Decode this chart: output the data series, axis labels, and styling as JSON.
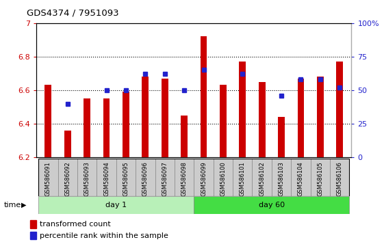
{
  "title": "GDS4374 / 7951093",
  "samples": [
    "GSM586091",
    "GSM586092",
    "GSM586093",
    "GSM586094",
    "GSM586095",
    "GSM586096",
    "GSM586097",
    "GSM586098",
    "GSM586099",
    "GSM586100",
    "GSM586101",
    "GSM586102",
    "GSM586103",
    "GSM586104",
    "GSM586105",
    "GSM586106"
  ],
  "transformed_counts": [
    6.63,
    6.36,
    6.55,
    6.55,
    6.59,
    6.68,
    6.67,
    6.45,
    6.92,
    6.63,
    6.77,
    6.65,
    6.44,
    6.67,
    6.68,
    6.77
  ],
  "percentile_ranks": [
    null,
    40,
    null,
    50,
    50,
    62,
    62,
    50,
    65,
    null,
    62,
    null,
    46,
    58,
    58,
    52
  ],
  "ylim_left": [
    6.2,
    7.0
  ],
  "ylim_right": [
    0,
    100
  ],
  "yticks_left": [
    6.2,
    6.4,
    6.6,
    6.8,
    7.0
  ],
  "ytick_labels_left": [
    "6.2",
    "6.4",
    "6.6",
    "6.8",
    "7"
  ],
  "yticks_right": [
    0,
    25,
    50,
    75,
    100
  ],
  "ytick_labels_right": [
    "0",
    "25",
    "50",
    "75",
    "100%"
  ],
  "grid_values": [
    6.4,
    6.6,
    6.8
  ],
  "bar_color": "#cc0000",
  "dot_color": "#2222cc",
  "day1_color": "#b8f0b8",
  "day60_color": "#44dd44",
  "day1_label": "day 1",
  "day60_label": "day 60",
  "legend_bar_label": "transformed count",
  "legend_dot_label": "percentile rank within the sample",
  "bar_bottom": 6.2,
  "bar_width": 0.35,
  "sample_box_color": "#cccccc",
  "sample_box_edge": "#888888"
}
